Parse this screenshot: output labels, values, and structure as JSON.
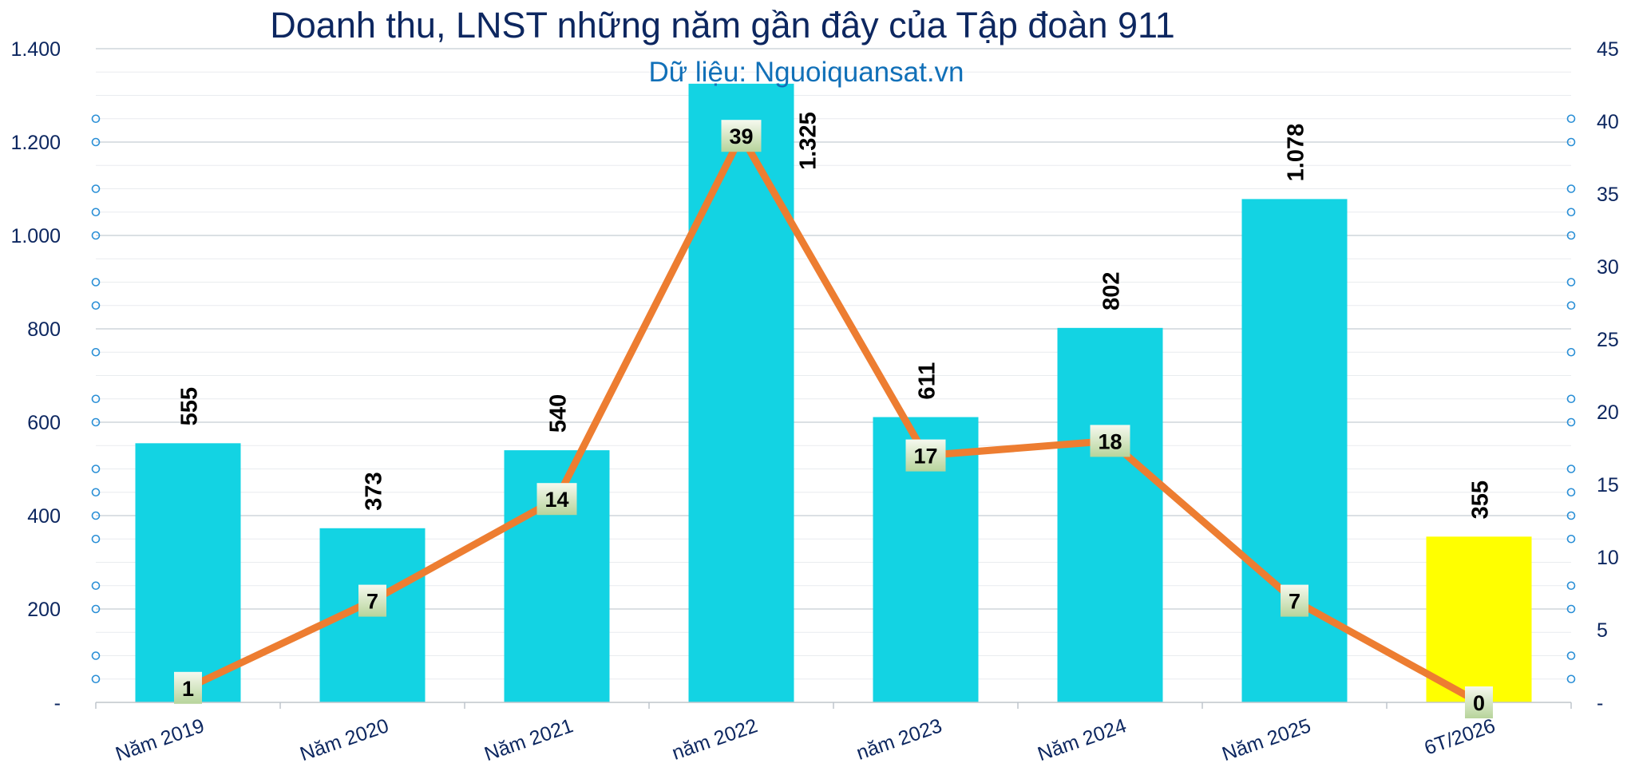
{
  "chart_data": {
    "type": "bar",
    "title": "Doanh thu, LNST những năm gần đây của Tập đoàn 911",
    "subtitle": "Dữ liệu: Nguoiquansat.vn",
    "categories": [
      "Năm 2019",
      "Năm 2020",
      "Năm 2021",
      "năm 2022",
      "năm 2023",
      "Năm 2024",
      "Năm 2025",
      "6T/2026"
    ],
    "series": [
      {
        "type": "bar",
        "axis": "left",
        "values": [
          555,
          373,
          540,
          1325,
          611,
          802,
          1078,
          355
        ],
        "data_labels": [
          "555",
          "373",
          "540",
          "1.325",
          "611",
          "802",
          "1.078",
          "355"
        ],
        "colors": [
          "#13d3e3",
          "#13d3e3",
          "#13d3e3",
          "#13d3e3",
          "#13d3e3",
          "#13d3e3",
          "#13d3e3",
          "#ffff00"
        ]
      },
      {
        "type": "line",
        "axis": "right",
        "values": [
          1,
          7,
          14,
          39,
          17,
          18,
          7,
          0
        ],
        "data_labels": [
          "1",
          "7",
          "14",
          "39",
          "17",
          "18",
          "7",
          "0"
        ],
        "color": "#ed7d31"
      }
    ],
    "y_left": {
      "ylim": [
        0,
        1400
      ],
      "ticks": [
        0,
        200,
        400,
        600,
        800,
        1000,
        1200,
        1400
      ],
      "tick_labels": [
        "-",
        "200",
        "400",
        "600",
        "800",
        "1.000",
        "1.200",
        "1.400"
      ]
    },
    "y_right": {
      "ylim": [
        0,
        45
      ],
      "ticks": [
        0,
        5,
        10,
        15,
        20,
        25,
        30,
        35,
        40,
        45
      ],
      "tick_labels": [
        "-",
        "5",
        "10",
        "15",
        "20",
        "25",
        "30",
        "35",
        "40",
        "45"
      ]
    },
    "grid": true,
    "legend": "none",
    "colors": {
      "title": "#0d2760",
      "subtitle": "#1170b8",
      "axis_text": "#0d2760",
      "bar": "#13d3e3",
      "bar_highlight": "#ffff00",
      "line": "#ed7d31",
      "grid_major": "#cfd5dc",
      "grid_minor": "#e9ecef"
    }
  }
}
